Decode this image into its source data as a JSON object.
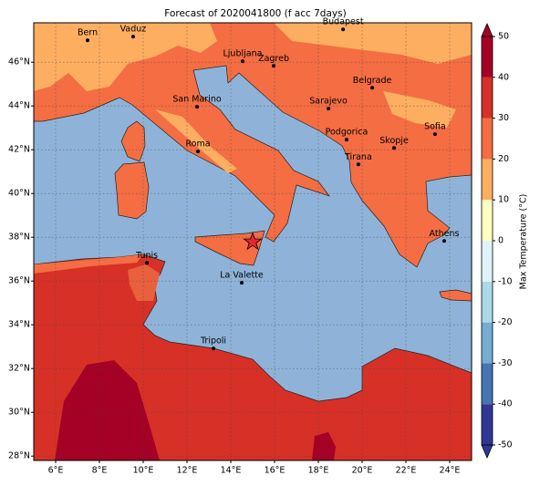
{
  "title": "Forecast of 2020041800 (f acc 7days)",
  "map": {
    "xlim": [
      5,
      25
    ],
    "ylim": [
      27.8,
      47.8
    ],
    "xticks": [
      {
        "value": 6,
        "label": "6°E"
      },
      {
        "value": 8,
        "label": "8°E"
      },
      {
        "value": 10,
        "label": "10°E"
      },
      {
        "value": 12,
        "label": "12°E"
      },
      {
        "value": 14,
        "label": "14°E"
      },
      {
        "value": 16,
        "label": "16°E"
      },
      {
        "value": 18,
        "label": "18°E"
      },
      {
        "value": 20,
        "label": "20°E"
      },
      {
        "value": 22,
        "label": "22°E"
      },
      {
        "value": 24,
        "label": "24°E"
      }
    ],
    "yticks": [
      {
        "value": 28,
        "label": "28°N"
      },
      {
        "value": 30,
        "label": "30°N"
      },
      {
        "value": 32,
        "label": "32°N"
      },
      {
        "value": 34,
        "label": "34°N"
      },
      {
        "value": 36,
        "label": "36°N"
      },
      {
        "value": 38,
        "label": "38°N"
      },
      {
        "value": 40,
        "label": "40°N"
      },
      {
        "value": 42,
        "label": "42°N"
      },
      {
        "value": 44,
        "label": "44°N"
      },
      {
        "value": 46,
        "label": "46°N"
      }
    ],
    "grid": true,
    "cities": [
      {
        "name": "Bern",
        "lon": 7.46,
        "lat": 47.0
      },
      {
        "name": "Vaduz",
        "lon": 9.54,
        "lat": 47.17
      },
      {
        "name": "Budapest",
        "lon": 19.13,
        "lat": 47.5
      },
      {
        "name": "Ljubljana",
        "lon": 14.54,
        "lat": 46.04
      },
      {
        "name": "Zagreb",
        "lon": 15.96,
        "lat": 45.83
      },
      {
        "name": "Belgrade",
        "lon": 20.46,
        "lat": 44.83
      },
      {
        "name": "San Marino",
        "lon": 12.46,
        "lat": 43.96
      },
      {
        "name": "Sarajevo",
        "lon": 18.46,
        "lat": 43.88
      },
      {
        "name": "Sofia",
        "lon": 23.33,
        "lat": 42.71
      },
      {
        "name": "Podgorica",
        "lon": 19.29,
        "lat": 42.46
      },
      {
        "name": "Skopje",
        "lon": 21.46,
        "lat": 42.08
      },
      {
        "name": "Roma",
        "lon": 12.5,
        "lat": 41.92
      },
      {
        "name": "Tirana",
        "lon": 19.83,
        "lat": 41.33
      },
      {
        "name": "Athens",
        "lon": 23.75,
        "lat": 37.83
      },
      {
        "name": "Tunis",
        "lon": 10.17,
        "lat": 36.83
      },
      {
        "name": "La Valette",
        "lon": 14.5,
        "lat": 35.92
      },
      {
        "name": "Tripoli",
        "lon": 13.21,
        "lat": 32.92
      }
    ],
    "event": {
      "lon": 15.0,
      "lat": 37.79
    }
  },
  "colorbar": {
    "label": "Max Temperature (°C)",
    "lim": [
      -50,
      50
    ],
    "ticks": [
      -50,
      -40,
      -30,
      -20,
      -10,
      0,
      10,
      20,
      30,
      40,
      50
    ],
    "colors": [
      "#313695",
      "#4575b4",
      "#74add1",
      "#abd9e9",
      "#e0f3f8",
      "#ffffbf",
      "#fdae61",
      "#f46d43",
      "#d73027",
      "#a50026"
    ]
  }
}
